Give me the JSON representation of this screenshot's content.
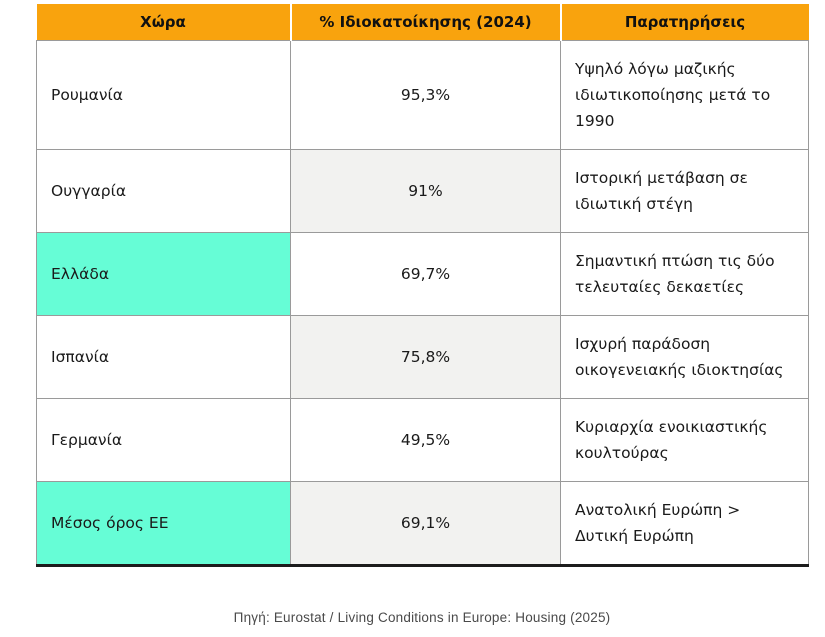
{
  "table": {
    "columns": [
      {
        "key": "country",
        "label": "Χώρα"
      },
      {
        "key": "percent",
        "label": "% Ιδιοκατοίκησης (2024)"
      },
      {
        "key": "notes",
        "label": "Παρατηρήσεις"
      }
    ],
    "rows": [
      {
        "country": "Ρουμανία",
        "percent": "95,3%",
        "notes": "Υψηλό λόγω μαζικής ιδιωτικοποίησης μετά το 1990",
        "highlight": false
      },
      {
        "country": "Ουγγαρία",
        "percent": "91%",
        "notes": "Ιστορική μετάβαση σε ιδιωτική στέγη",
        "highlight": false
      },
      {
        "country": "Ελλάδα",
        "percent": "69,7%",
        "notes": "Σημαντική πτώση τις δύο τελευταίες δεκαετίες",
        "highlight": true
      },
      {
        "country": "Ισπανία",
        "percent": "75,8%",
        "notes": "Ισχυρή παράδοση οικογενειακής ιδιοκτησίας",
        "highlight": false
      },
      {
        "country": "Γερμανία",
        "percent": "49,5%",
        "notes": "Κυριαρχία ενοικιαστικής κουλτούρας",
        "highlight": false
      },
      {
        "country": "Μέσος όρος ΕΕ",
        "percent": "69,1%",
        "notes": "Ανατολική Ευρώπη > Δυτική Ευρώπη",
        "highlight": true
      }
    ]
  },
  "caption": "Πηγή: Eurostat / Living Conditions in Europe: Housing (2025)",
  "colors": {
    "header_bg": "#F9A30D",
    "highlight_bg": "#66FDD6",
    "shaded_bg": "#F2F2F0",
    "border": "#9A9A9A"
  }
}
